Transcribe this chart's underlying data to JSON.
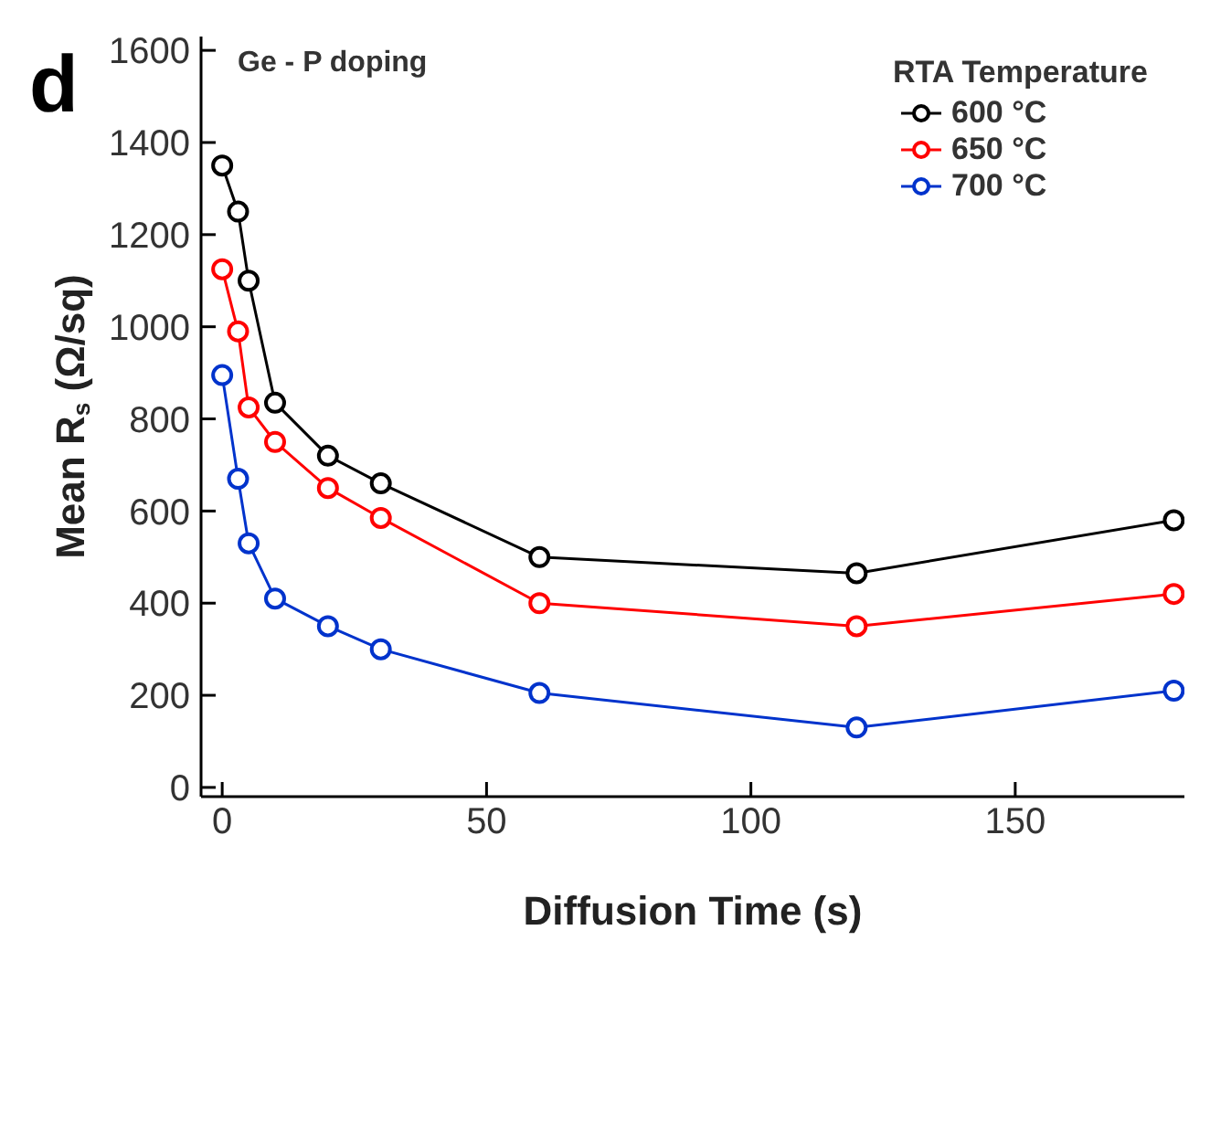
{
  "chart_data": {
    "type": "line",
    "xlabel": "Diffusion Time (s)",
    "ylabel": "Mean R$_{s}$ (Ω/sq)",
    "legend_title": "RTA Temperature",
    "annotations": [
      "d",
      "Ge - P doping"
    ],
    "x": [
      0,
      3,
      5,
      10,
      20,
      30,
      60,
      120,
      180
    ],
    "series": [
      {
        "name": "600 °C",
        "color": "#000000",
        "values": [
          1350,
          1250,
          1100,
          835,
          720,
          660,
          500,
          465,
          580
        ]
      },
      {
        "name": "650 °C",
        "color": "#ff0000",
        "values": [
          1125,
          990,
          825,
          750,
          650,
          585,
          400,
          350,
          420
        ]
      },
      {
        "name": "700 °C",
        "color": "#0033cc",
        "values": [
          895,
          670,
          530,
          410,
          350,
          300,
          205,
          130,
          210
        ]
      }
    ],
    "xlim": [
      -4,
      182
    ],
    "xticks": [
      0,
      50,
      100,
      150
    ],
    "ylim": [
      -20,
      1630
    ],
    "yticks": [
      0,
      200,
      400,
      600,
      800,
      1000,
      1200,
      1400,
      1600
    ],
    "grid": false,
    "legend": "top right",
    "marker": "circle",
    "line_style": "solid"
  }
}
